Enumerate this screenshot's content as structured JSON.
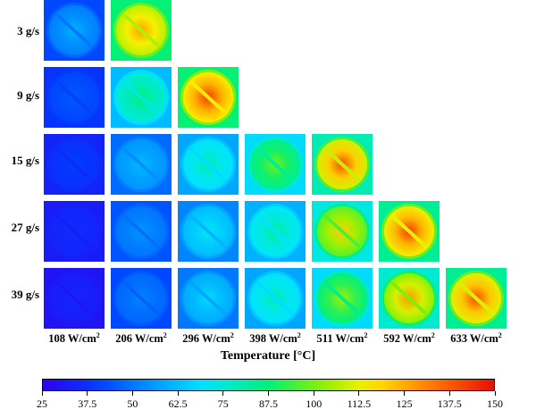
{
  "figure": {
    "rows": [
      "3 g/s",
      "9 g/s",
      "15 g/s",
      "27 g/s",
      "39 g/s"
    ],
    "columns": [
      {
        "value": "108 W/cm",
        "sup": "2"
      },
      {
        "value": "206 W/cm",
        "sup": "2"
      },
      {
        "value": "296 W/cm",
        "sup": "2"
      },
      {
        "value": "398 W/cm",
        "sup": "2"
      },
      {
        "value": "511 W/cm",
        "sup": "2"
      },
      {
        "value": "592 W/cm",
        "sup": "2"
      },
      {
        "value": "633 W/cm",
        "sup": "2"
      }
    ],
    "tiles": [
      [
        {
          "bg": 42,
          "center": 60
        },
        {
          "bg": 88,
          "center": 127
        },
        null,
        null,
        null,
        null,
        null
      ],
      [
        {
          "bg": 38,
          "center": 45
        },
        {
          "bg": 62,
          "center": 87
        },
        {
          "bg": 88,
          "center": 143
        },
        null,
        null,
        null,
        null
      ],
      [
        {
          "bg": 34,
          "center": 40
        },
        {
          "bg": 48,
          "center": 62
        },
        {
          "bg": 58,
          "center": 80
        },
        {
          "bg": 68,
          "center": 100
        },
        {
          "bg": 80,
          "center": 140
        },
        null,
        null
      ],
      [
        {
          "bg": 32,
          "center": 36
        },
        {
          "bg": 44,
          "center": 55
        },
        {
          "bg": 52,
          "center": 72
        },
        {
          "bg": 60,
          "center": 82
        },
        {
          "bg": 74,
          "center": 120
        },
        {
          "bg": 84,
          "center": 143
        },
        null
      ],
      [
        {
          "bg": 30,
          "center": 34
        },
        {
          "bg": 42,
          "center": 52
        },
        {
          "bg": 50,
          "center": 68
        },
        {
          "bg": 58,
          "center": 80
        },
        {
          "bg": 68,
          "center": 105
        },
        {
          "bg": 76,
          "center": 128
        },
        {
          "bg": 84,
          "center": 140
        }
      ]
    ]
  },
  "colorbar": {
    "title": "Temperature [°C]",
    "min": 25,
    "max": 150,
    "ticks": [
      "25",
      "37.5",
      "50",
      "62.5",
      "75",
      "87.5",
      "100",
      "112.5",
      "125",
      "137.5",
      "150"
    ]
  }
}
